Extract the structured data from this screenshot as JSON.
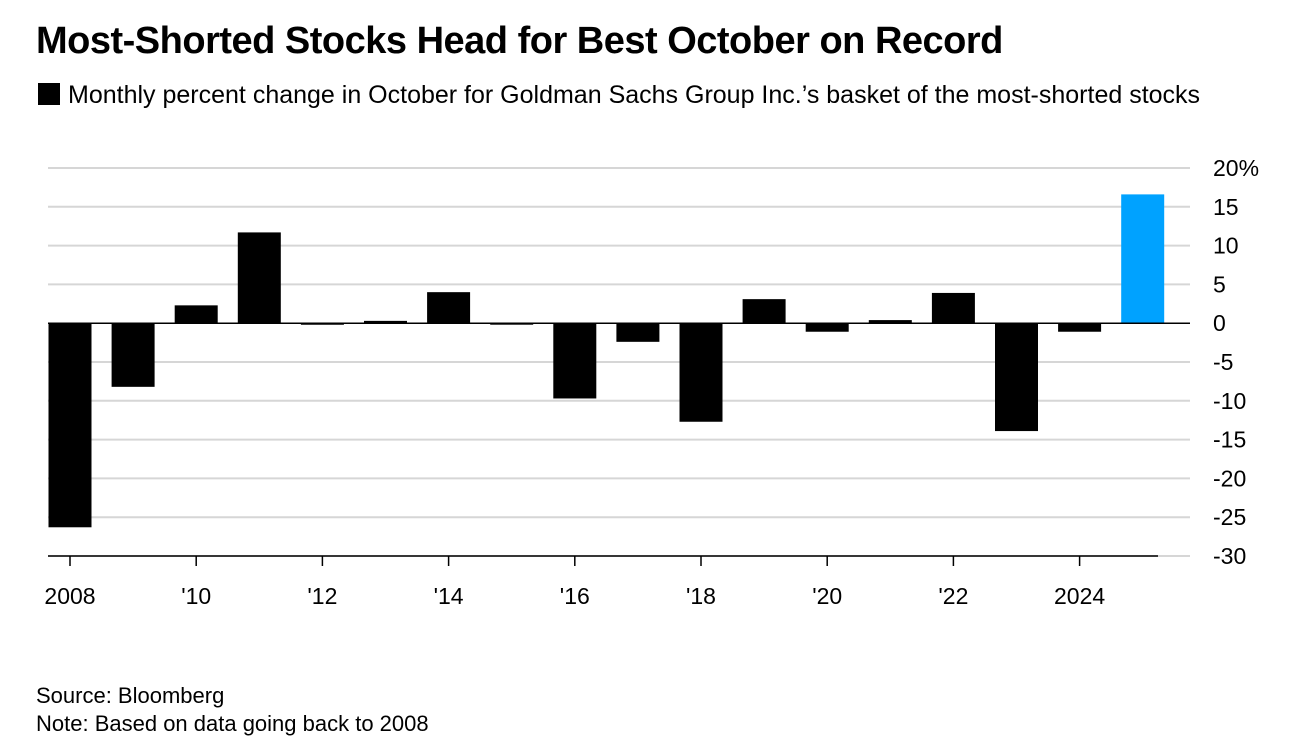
{
  "title": "Most-Shorted Stocks Head for Best October on Record",
  "legend": {
    "label": "Monthly percent change in October for Goldman Sachs Group Inc.’s basket of the most-shorted stocks"
  },
  "source": "Source: Bloomberg",
  "note": "Note: Based on data going back to 2008",
  "colors": {
    "bar": "#000000",
    "highlight": "#00a2ff",
    "grid": "#d6d6d6",
    "axis": "#000000"
  },
  "chart_data": {
    "type": "bar",
    "categories": [
      "2008",
      "2009",
      "2010",
      "2011",
      "2012",
      "2013",
      "2014",
      "2015",
      "2016",
      "2017",
      "2018",
      "2019",
      "2020",
      "2021",
      "2022",
      "2023",
      "2024",
      "2025"
    ],
    "values": [
      -26.3,
      -8.2,
      2.3,
      11.7,
      -0.2,
      0.3,
      4.0,
      -0.1,
      -9.7,
      -2.4,
      -12.7,
      3.1,
      -1.1,
      0.4,
      3.9,
      -13.9,
      -1.1,
      16.6
    ],
    "highlight_index": 17,
    "ylim": [
      -30,
      20
    ],
    "y_ticks": [
      20,
      15,
      10,
      5,
      0,
      -5,
      -10,
      -15,
      -20,
      -25,
      -30
    ],
    "y_tick_labels": [
      "20%",
      "15",
      "10",
      "5",
      "0",
      "-5",
      "-10",
      "-15",
      "-20",
      "-25",
      "-30"
    ],
    "x_tick_years": [
      2008,
      2010,
      2012,
      2014,
      2016,
      2018,
      2020,
      2022,
      2024
    ],
    "x_tick_labels": [
      "2008",
      "'10",
      "'12",
      "'14",
      "'16",
      "'18",
      "'20",
      "'22",
      "2024"
    ],
    "grid": true,
    "y_axis_position": "right",
    "legend_position": "top-left"
  }
}
